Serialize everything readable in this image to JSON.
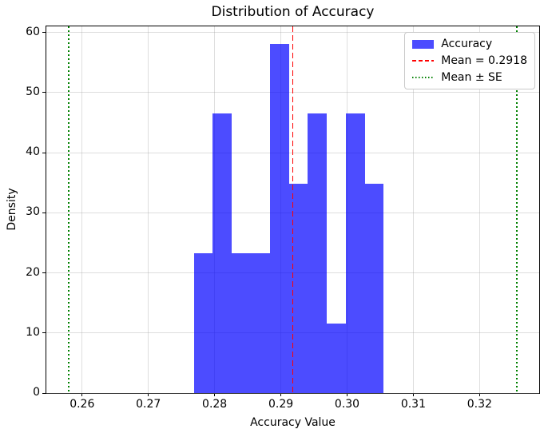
{
  "chart_data": {
    "type": "bar",
    "subtype": "histogram",
    "title": "Distribution of Accuracy",
    "xlabel": "Accuracy Value",
    "ylabel": "Density",
    "bin_edges": [
      0.27687,
      0.27974,
      0.2826,
      0.28547,
      0.28834,
      0.29121,
      0.29407,
      0.29694,
      0.29981,
      0.30267,
      0.30554
    ],
    "densities": [
      23.25,
      46.49,
      23.25,
      23.25,
      58.12,
      34.87,
      46.49,
      11.62,
      46.49,
      34.87
    ],
    "bar_color": "#0000ff",
    "bar_alpha": 0.7,
    "mean_line": {
      "value": 0.2918,
      "label": "Mean = 0.2918",
      "color": "#ff0000",
      "style": "dashed"
    },
    "se_lines": {
      "values": [
        0.258,
        0.3256
      ],
      "label": "Mean ± SE",
      "color": "#008000",
      "style": "dotted"
    },
    "xlim": [
      0.2546,
      0.329
    ],
    "ylim": [
      0,
      61.0
    ],
    "x_tick_values": [
      0.26,
      0.27,
      0.28,
      0.29,
      0.3,
      0.31,
      0.32
    ],
    "x_tick_labels": [
      "0.26",
      "0.27",
      "0.28",
      "0.29",
      "0.30",
      "0.31",
      "0.32"
    ],
    "y_tick_values": [
      0,
      10,
      20,
      30,
      40,
      50,
      60
    ],
    "y_tick_labels": [
      "0",
      "10",
      "20",
      "30",
      "40",
      "50",
      "60"
    ],
    "grid": true,
    "legend": {
      "position": "upper right",
      "entries": [
        {
          "label": "Accuracy",
          "handle": "patch",
          "color": "#0000ff"
        },
        {
          "label": "Mean = 0.2918",
          "handle": "dashed",
          "color": "#ff0000"
        },
        {
          "label": "Mean ± SE",
          "handle": "dotted",
          "color": "#008000"
        }
      ]
    }
  }
}
